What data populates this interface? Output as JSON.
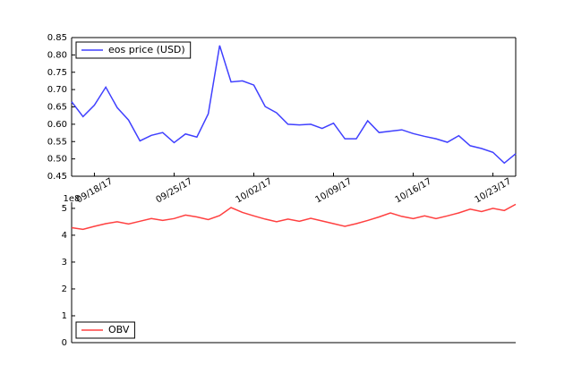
{
  "chart_data": [
    {
      "type": "line",
      "x": [
        "2017-09-16",
        "2017-09-17",
        "2017-09-18",
        "2017-09-19",
        "2017-09-20",
        "2017-09-21",
        "2017-09-22",
        "2017-09-23",
        "2017-09-24",
        "2017-09-25",
        "2017-09-26",
        "2017-09-27",
        "2017-09-28",
        "2017-09-29",
        "2017-09-30",
        "2017-10-01",
        "2017-10-02",
        "2017-10-03",
        "2017-10-04",
        "2017-10-05",
        "2017-10-06",
        "2017-10-07",
        "2017-10-08",
        "2017-10-09",
        "2017-10-10",
        "2017-10-11",
        "2017-10-12",
        "2017-10-13",
        "2017-10-14",
        "2017-10-15",
        "2017-10-16",
        "2017-10-17",
        "2017-10-18",
        "2017-10-19",
        "2017-10-20",
        "2017-10-21",
        "2017-10-22",
        "2017-10-23",
        "2017-10-24",
        "2017-10-25"
      ],
      "series": [
        {
          "name": "eos price (USD)",
          "color": "#4040ff",
          "values": [
            0.665,
            0.622,
            0.655,
            0.707,
            0.648,
            0.612,
            0.552,
            0.568,
            0.576,
            0.547,
            0.572,
            0.563,
            0.63,
            0.827,
            0.722,
            0.725,
            0.713,
            0.651,
            0.633,
            0.6,
            0.598,
            0.6,
            0.588,
            0.603,
            0.558,
            0.558,
            0.61,
            0.576,
            0.58,
            0.584,
            0.573,
            0.565,
            0.558,
            0.548,
            0.567,
            0.538,
            0.53,
            0.519,
            0.488,
            0.515
          ]
        }
      ],
      "xlim": [
        "2017-09-16",
        "2017-10-25"
      ],
      "xticks": [
        {
          "value": "2017-09-18",
          "label": "09/18/17"
        },
        {
          "value": "2017-09-25",
          "label": "09/25/17"
        },
        {
          "value": "2017-10-02",
          "label": "10/02/17"
        },
        {
          "value": "2017-10-09",
          "label": "10/09/17"
        },
        {
          "value": "2017-10-16",
          "label": "10/16/17"
        },
        {
          "value": "2017-10-23",
          "label": "10/23/17"
        }
      ],
      "ylim": [
        0.45,
        0.85
      ],
      "yticks": [
        0.45,
        {
          "value": 0.5,
          "label": "0.50"
        },
        0.55,
        {
          "value": 0.6,
          "label": "0.60"
        },
        0.65,
        {
          "value": 0.7,
          "label": "0.70"
        },
        0.75,
        {
          "value": 0.8,
          "label": "0.80"
        },
        0.85
      ],
      "legend": "upper left"
    },
    {
      "type": "line",
      "x": [
        "2017-09-16",
        "2017-09-17",
        "2017-09-18",
        "2017-09-19",
        "2017-09-20",
        "2017-09-21",
        "2017-09-22",
        "2017-09-23",
        "2017-09-24",
        "2017-09-25",
        "2017-09-26",
        "2017-09-27",
        "2017-09-28",
        "2017-09-29",
        "2017-09-30",
        "2017-10-01",
        "2017-10-02",
        "2017-10-03",
        "2017-10-04",
        "2017-10-05",
        "2017-10-06",
        "2017-10-07",
        "2017-10-08",
        "2017-10-09",
        "2017-10-10",
        "2017-10-11",
        "2017-10-12",
        "2017-10-13",
        "2017-10-14",
        "2017-10-15",
        "2017-10-16",
        "2017-10-17",
        "2017-10-18",
        "2017-10-19",
        "2017-10-20",
        "2017-10-21",
        "2017-10-22",
        "2017-10-23",
        "2017-10-24",
        "2017-10-25"
      ],
      "series": [
        {
          "name": "OBV",
          "color": "#ff4040",
          "values": [
            4.28,
            4.22,
            4.33,
            4.43,
            4.5,
            4.42,
            4.52,
            4.62,
            4.55,
            4.62,
            4.75,
            4.68,
            4.58,
            4.73,
            5.03,
            4.85,
            4.72,
            4.6,
            4.5,
            4.6,
            4.52,
            4.63,
            4.53,
            4.43,
            4.33,
            4.43,
            4.55,
            4.68,
            4.83,
            4.7,
            4.62,
            4.72,
            4.62,
            4.72,
            4.83,
            4.97,
            4.88,
            5.0,
            4.92,
            5.15
          ]
        }
      ],
      "xlim": [
        "2017-09-16",
        "2017-10-25"
      ],
      "ylim": [
        0,
        5.23
      ],
      "yticks": [
        0,
        1,
        2,
        3,
        4,
        5
      ],
      "offset_label": "1e8",
      "legend": "lower left"
    }
  ]
}
